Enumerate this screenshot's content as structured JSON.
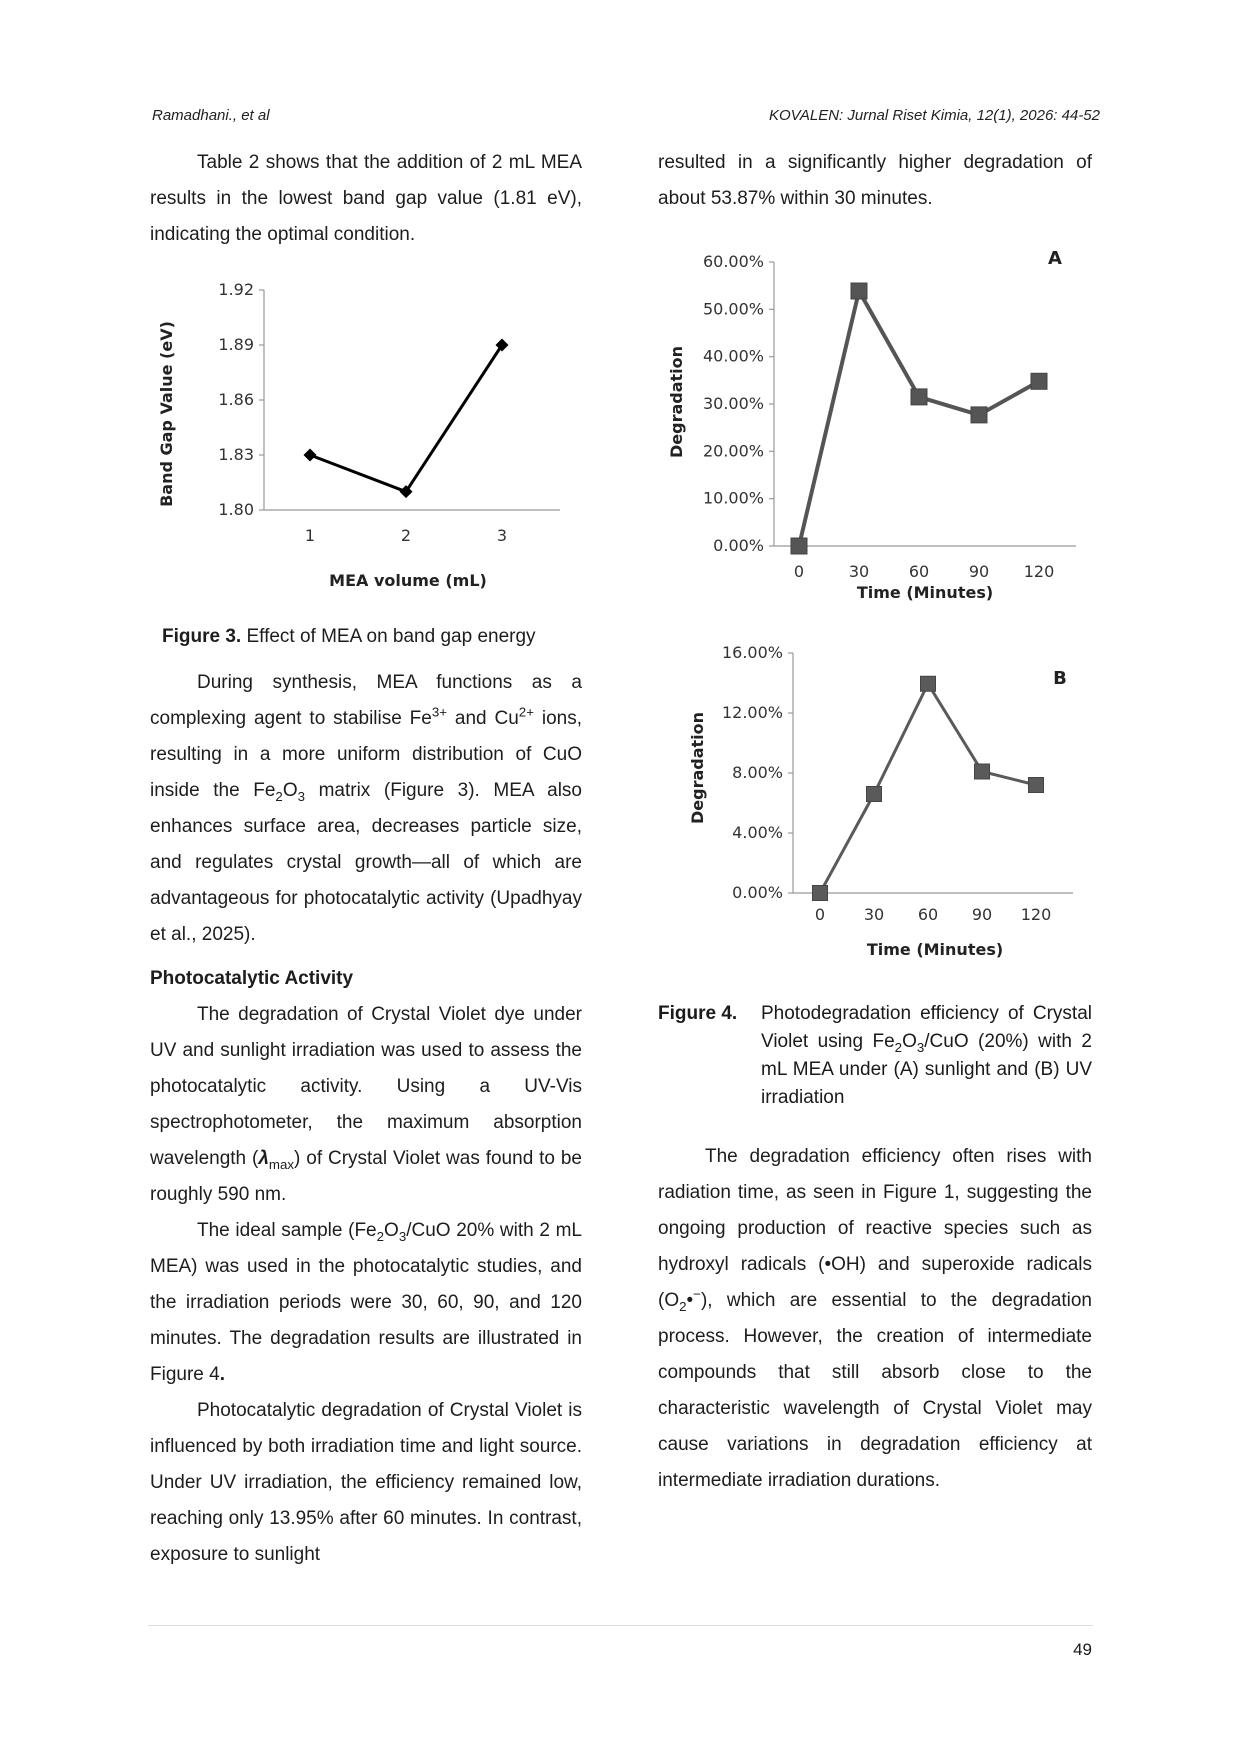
{
  "header": {
    "left": "Ramadhani., et al",
    "right": "KOVALEN: Jurnal Riset Kimia, 12(1), 2026: 44-52"
  },
  "left_column": {
    "p1": "Table 2 shows that the addition of 2 mL MEA results in the lowest band gap value (1.81 eV), indicating the optimal condition.",
    "fig3_caption_label": "Figure 3.",
    "fig3_caption_text": " Effect of MEA on band gap energy",
    "p2_a": "During synthesis, MEA functions as a complexing agent to stabilise Fe",
    "p2_sup1": "3+",
    "p2_b": " and Cu",
    "p2_sup2": "2+",
    "p2_c": " ions, resulting in a more uniform distribution of CuO inside the Fe",
    "p2_sub1": "2",
    "p2_d": "O",
    "p2_sub2": "3",
    "p2_e": " matrix (Figure 3). MEA also enhances surface area, decreases particle size, and regulates crystal growth—all of which are advantageous for photocatalytic activity (Upadhyay et al., 2025).",
    "section_heading": "Photocatalytic Activity",
    "p3_a": "The degradation of Crystal Violet dye under UV and sunlight irradiation was used to assess the photocatalytic activity. Using a UV-Vis spectrophotometer, the maximum absorption wavelength (",
    "p3_sym": "λ",
    "p3_sub": "max",
    "p3_b": ") of Crystal Violet was found to be roughly 590 nm.",
    "p4_a": "The ideal sample (Fe",
    "p4_sub1": "2",
    "p4_b": "O",
    "p4_sub2": "3",
    "p4_c": "/CuO 20% with 2 mL MEA) was used in the photocatalytic studies, and the irradiation periods were 30, 60, 90, and 120 minutes. The degradation results are illustrated in Figure 4",
    "p4_dot": ".",
    "p5": "Photocatalytic degradation of Crystal Violet is influenced by both irradiation time and light source. Under UV irradiation, the efficiency remained low, reaching only 13.95% after 60 minutes. In contrast, exposure to sunlight"
  },
  "right_column": {
    "p1": "resulted in a significantly higher degradation of about 53.87% within 30 minutes.",
    "fig4_caption_label": "Figure 4.",
    "fig4_caption_a": "Photodegradation efficiency of Crystal Violet using Fe",
    "fig4_sub1": "2",
    "fig4_caption_b": "O",
    "fig4_sub2": "3",
    "fig4_caption_c": "/CuO (20%) with 2 mL MEA under (A) sunlight and (B) UV irradiation",
    "p2_a": "The degradation efficiency often rises with radiation time, as seen in Figure 1, suggesting the ongoing production of reactive species such as hydroxyl radicals (•OH) and superoxide radicals (O",
    "p2_sub": "2",
    "p2_b": "•",
    "p2_sup": "−",
    "p2_c": "), which are essential to the degradation process. However, the creation of intermediate compounds that still absorb close to the characteristic wavelength of Crystal Violet may cause variations in degradation efficiency at intermediate irradiation durations."
  },
  "page_number": "49",
  "chart_data": [
    {
      "type": "line",
      "ylabel": "Band Gap Value (eV)",
      "xlabel": "MEA volume (mL)",
      "categories": [
        "1",
        "2",
        "3"
      ],
      "values": [
        1.83,
        1.81,
        1.89
      ],
      "yticks": [
        "1.80",
        "1.83",
        "1.86",
        "1.89",
        "1.92"
      ],
      "ylim": [
        1.8,
        1.92
      ],
      "marker": "diamond",
      "color": "#000000",
      "grid": false
    },
    {
      "type": "line",
      "panel_label": "A",
      "ylabel": "Degradation",
      "xlabel": "Time (Minutes)",
      "categories": [
        "0",
        "30",
        "60",
        "90",
        "120"
      ],
      "values": [
        0.0,
        53.87,
        31.5,
        27.7,
        34.8
      ],
      "yticks": [
        "0.00%",
        "10.00%",
        "20.00%",
        "30.00%",
        "40.00%",
        "50.00%",
        "60.00%"
      ],
      "ylim": [
        0,
        60
      ],
      "marker": "square",
      "color": "#555555",
      "grid": false
    },
    {
      "type": "line",
      "panel_label": "B",
      "ylabel": "Degradation",
      "xlabel": "Time (Minutes)",
      "categories": [
        "0",
        "30",
        "60",
        "90",
        "120"
      ],
      "values": [
        0.0,
        6.6,
        13.95,
        8.1,
        7.2
      ],
      "yticks": [
        "0.00%",
        "4.00%",
        "8.00%",
        "12.00%",
        "16.00%"
      ],
      "ylim": [
        0,
        16
      ],
      "marker": "square",
      "color": "#5a5a5a",
      "grid": false
    }
  ]
}
